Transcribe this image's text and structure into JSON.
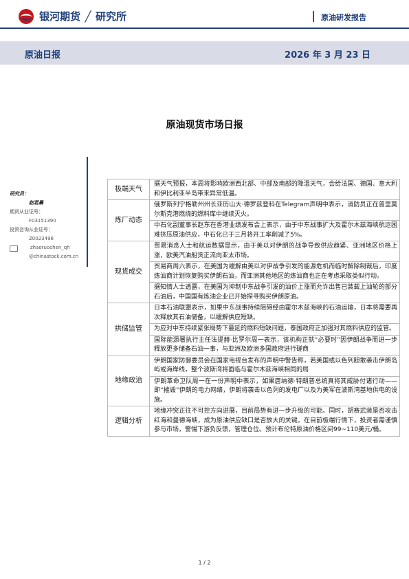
{
  "header": {
    "brand": "银河期货",
    "institute": "研究所",
    "separator": "╱",
    "report_series": "原油研发报告"
  },
  "band": {
    "title": "原油日报",
    "date": "2026 年 3 月 23 日"
  },
  "main_title": "原油现货市场日报",
  "sidebar": {
    "researcher_label": "研究员：",
    "researcher_name": "赵若晨",
    "license_label": "期货从业证号：",
    "license_value": "F03151390",
    "advisor_label": "投资咨询从业证号：",
    "advisor_value": "Z0023496",
    "email_user": "zhaoruochen_qh",
    "email_domain": "@chinastock.com.cn"
  },
  "table": [
    {
      "category": "极端天气",
      "paragraphs": [
        "据天气预报，本周将影响欧洲西北部、中部及南部的降温天气，会给法国、德国、意大利和伊比利亚半岛带来异常低温。"
      ]
    },
    {
      "category": "炼厂动态",
      "paragraphs": [
        "俄罗斯列宁格勒州州长亚历山大·德罗兹登科在Telegram声明中表示，消防员正在普里莫尔斯克港燃烧的燃料库中继续灭火。",
        "中石化副董事长赵东在香港业绩发布会上表示，由于中东战事扩大及霍尔木兹海峡航运困难挤压原油供应，中石化已于三月将开工率削减了5%。"
      ]
    },
    {
      "category": "现货成交",
      "paragraphs": [
        "贸易消息人士和航运数据显示，由于美以对伊朗的战争导致供应趋紧、亚洲地区价格上涨，欧美汽油船货正流向亚太市场。",
        "贸易商周六表示，在美国为缓解由美以对伊战争引发的能源危机而临时解除制裁后，印度炼油商计划恢复购买伊朗石油，而亚洲其他地区的炼油商也正在考虑采取类似行动。",
        "据知情人士透露，在美国为抑制中东战争引发的油价上涨而允许出售已装载上油轮的部分石油后，中国国有炼油企业已开始探寻购买伊朗原油。"
      ]
    },
    {
      "category": "拱储监管",
      "paragraphs": [
        "日本石油联盟表示，如果中东战事持续阻碍经由霍尔木兹海峡的石油运输，日本将需要再次释放其石油储备，以缓解供应短缺。",
        "为应对中东持续紧张局势下蔓延的燃料短缺问题，泰国政府正加强对其燃料供应的监管。",
        "国际能源署执行主任法提赫·比罗尔周一表示，该机构正就“必要时”因伊朗战争而进一步释放更多储备石油一事，与亚洲及欧洲多国政府进行磋商"
      ]
    },
    {
      "category": "地缘政治",
      "paragraphs": [
        "伊朗国家防御委员会在国家电视台发布的声明中警告称，若美国或以色列胆敢袭击伊朗岛屿或海岸线，整个波斯湾将面临与霍尔木兹海峡相同的局",
        "伊朗革命卫队周一在一份声明中表示，如果唐纳德·特朗普总统真将其威胁付诸行动——即“摧毁”伊朗的电力网络，伊朗将袭击以色列的发电厂以及为美军在波斯湾基地供电的设施。"
      ]
    },
    {
      "category": "逻辑分析",
      "paragraphs": [
        "地缘冲突正往不可控方向进展，目前局势有进一步升级的可能。同时，胡赛武装是否攻击红海和曼德海峡，成为原油供应缺口是否放大的关键。在目前极端行情下，投资者需谨慎参与市场，警惕下游负反馈，管理仓位。预计布伦特原油价格区间99~110美元/桶。"
      ]
    }
  ],
  "footer": {
    "page": "1 / 2"
  },
  "colors": {
    "brand_blue": "#1f3f7a",
    "accent_red": "#c4161c",
    "band_gray": "#d9dbe6"
  }
}
